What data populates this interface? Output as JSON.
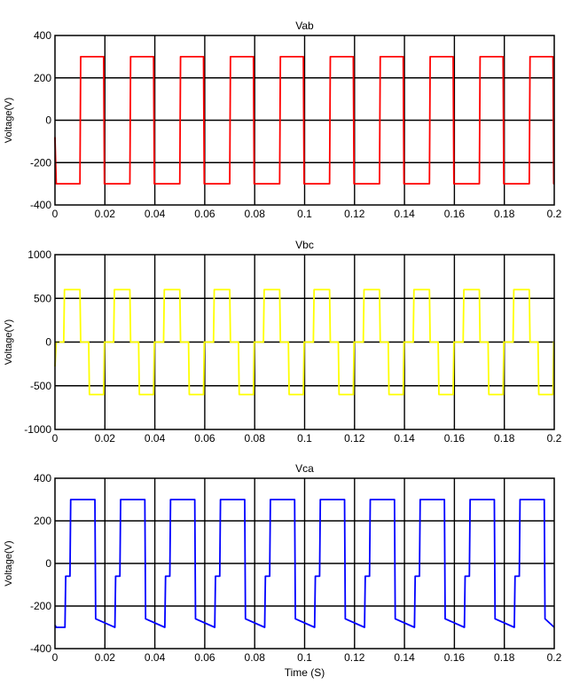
{
  "figure": {
    "chart_data": [
      {
        "type": "line",
        "title": "Vab",
        "ylabel": "Voltage(V)",
        "xlabel": "",
        "xlim": [
          0,
          0.2
        ],
        "ylim": [
          -400,
          400
        ],
        "xticks": [
          0,
          0.02,
          0.04,
          0.06,
          0.08,
          0.1,
          0.12,
          0.14,
          0.16,
          0.18,
          0.2
        ],
        "xtick_labels": [
          "0",
          "0.02",
          "0.04",
          "0.06",
          "0.08",
          "0.1",
          "0.12",
          "0.14",
          "0.16",
          "0.18",
          "0.2"
        ],
        "yticks": [
          -400,
          -200,
          0,
          200,
          400
        ],
        "ytick_labels": [
          "-400",
          "-200",
          "0",
          "200",
          "400"
        ],
        "grid": true,
        "series": [
          {
            "color": "#ff0000",
            "x": [
              0,
              0.0005,
              0.01,
              0.0103,
              0.0195,
              0.0198,
              0.03,
              0.0303,
              0.0395,
              0.0398,
              0.05,
              0.0503,
              0.0595,
              0.0598,
              0.07,
              0.0703,
              0.0795,
              0.0798,
              0.09,
              0.0903,
              0.0995,
              0.0998,
              0.11,
              0.1103,
              0.1195,
              0.1198,
              0.13,
              0.1303,
              0.1395,
              0.1398,
              0.15,
              0.1503,
              0.1595,
              0.1598,
              0.17,
              0.1703,
              0.1795,
              0.1798,
              0.19,
              0.1903,
              0.1995,
              0.1998,
              0.2
            ],
            "values": [
              -80,
              -300,
              -300,
              300,
              300,
              -300,
              -300,
              300,
              300,
              -300,
              -300,
              300,
              300,
              -300,
              -300,
              300,
              300,
              -300,
              -300,
              300,
              300,
              -300,
              -300,
              300,
              300,
              -300,
              -300,
              300,
              300,
              -300,
              -300,
              300,
              300,
              -300,
              -300,
              300,
              300,
              -300,
              -300,
              300,
              300,
              -300,
              -300
            ]
          }
        ]
      },
      {
        "type": "line",
        "title": "Vbc",
        "ylabel": "Voltage(V)",
        "xlabel": "",
        "xlim": [
          0,
          0.2
        ],
        "ylim": [
          -1000,
          1000
        ],
        "xticks": [
          0,
          0.02,
          0.04,
          0.06,
          0.08,
          0.1,
          0.12,
          0.14,
          0.16,
          0.18,
          0.2
        ],
        "xtick_labels": [
          "0",
          "0.02",
          "0.04",
          "0.06",
          "0.08",
          "0.1",
          "0.12",
          "0.14",
          "0.16",
          "0.18",
          "0.2"
        ],
        "yticks": [
          -1000,
          -500,
          0,
          500,
          1000
        ],
        "ytick_labels": [
          "-1000",
          "-500",
          "0",
          "500",
          "1000"
        ],
        "grid": true,
        "series": [
          {
            "color": "#ffff00",
            "x": [
              0,
              0.0005,
              0.0035,
              0.0038,
              0.01,
              0.0103,
              0.0135,
              0.0138,
              0.0195,
              0.0198,
              0.0235,
              0.0238,
              0.03,
              0.0303,
              0.0335,
              0.0338,
              0.0395,
              0.0398,
              0.0435,
              0.0438,
              0.05,
              0.0503,
              0.0535,
              0.0538,
              0.0595,
              0.0598,
              0.0635,
              0.0638,
              0.07,
              0.0703,
              0.0735,
              0.0738,
              0.0795,
              0.0798,
              0.0835,
              0.0838,
              0.09,
              0.0903,
              0.0935,
              0.0938,
              0.0995,
              0.0998,
              0.1035,
              0.1038,
              0.11,
              0.1103,
              0.1135,
              0.1138,
              0.1195,
              0.1198,
              0.1235,
              0.1238,
              0.13,
              0.1303,
              0.1335,
              0.1338,
              0.1395,
              0.1398,
              0.1435,
              0.1438,
              0.15,
              0.1503,
              0.1535,
              0.1538,
              0.1595,
              0.1598,
              0.1635,
              0.1638,
              0.17,
              0.1703,
              0.1735,
              0.1738,
              0.1795,
              0.1798,
              0.1835,
              0.1838,
              0.19,
              0.1903,
              0.1935,
              0.1938,
              0.1995,
              0.1998,
              0.2
            ],
            "values": [
              -280,
              0,
              0,
              600,
              600,
              0,
              0,
              -600,
              -600,
              0,
              0,
              600,
              600,
              0,
              0,
              -600,
              -600,
              0,
              0,
              600,
              600,
              0,
              0,
              -600,
              -600,
              0,
              0,
              600,
              600,
              0,
              0,
              -600,
              -600,
              0,
              0,
              600,
              600,
              0,
              0,
              -600,
              -600,
              0,
              0,
              600,
              600,
              0,
              0,
              -600,
              -600,
              0,
              0,
              600,
              600,
              0,
              0,
              -600,
              -600,
              0,
              0,
              600,
              600,
              0,
              0,
              -600,
              -600,
              0,
              0,
              600,
              600,
              0,
              0,
              -600,
              -600,
              0,
              0,
              600,
              600,
              0,
              0,
              -600,
              -600,
              0,
              0
            ]
          }
        ]
      },
      {
        "type": "line",
        "title": "Vca",
        "ylabel": "Voltage(V)",
        "xlabel": "Time (S)",
        "xlim": [
          0,
          0.2
        ],
        "ylim": [
          -400,
          400
        ],
        "xticks": [
          0,
          0.02,
          0.04,
          0.06,
          0.08,
          0.1,
          0.12,
          0.14,
          0.16,
          0.18,
          0.2
        ],
        "xtick_labels": [
          "0",
          "0.02",
          "0.04",
          "0.06",
          "0.08",
          "0.1",
          "0.12",
          "0.14",
          "0.16",
          "0.18",
          "0.2"
        ],
        "yticks": [
          -400,
          -200,
          0,
          200,
          400
        ],
        "ytick_labels": [
          "-400",
          "-200",
          "0",
          "200",
          "400"
        ],
        "grid": true,
        "series": [
          {
            "color": "#0000ff",
            "x": [
              0,
              0.0005,
              0.004,
              0.0043,
              0.006,
              0.0063,
              0.016,
              0.0163,
              0.024,
              0.0243,
              0.026,
              0.0263,
              0.036,
              0.0363,
              0.044,
              0.0443,
              0.046,
              0.0463,
              0.056,
              0.0563,
              0.064,
              0.0643,
              0.066,
              0.0663,
              0.076,
              0.0763,
              0.084,
              0.0843,
              0.086,
              0.0863,
              0.096,
              0.0963,
              0.104,
              0.1043,
              0.106,
              0.1063,
              0.116,
              0.1163,
              0.124,
              0.1243,
              0.126,
              0.1263,
              0.136,
              0.1363,
              0.144,
              0.1443,
              0.146,
              0.1463,
              0.156,
              0.1563,
              0.164,
              0.1643,
              0.166,
              0.1663,
              0.176,
              0.1763,
              0.184,
              0.1843,
              0.186,
              0.1863,
              0.196,
              0.1963,
              0.2
            ],
            "values": [
              -290,
              -300,
              -300,
              -60,
              -60,
              300,
              300,
              -260,
              -300,
              -60,
              -60,
              300,
              300,
              -260,
              -300,
              -60,
              -60,
              300,
              300,
              -260,
              -300,
              -60,
              -60,
              300,
              300,
              -260,
              -300,
              -60,
              -60,
              300,
              300,
              -260,
              -300,
              -60,
              -60,
              300,
              300,
              -260,
              -300,
              -60,
              -60,
              300,
              300,
              -260,
              -300,
              -60,
              -60,
              300,
              300,
              -260,
              -300,
              -60,
              -60,
              300,
              300,
              -260,
              -300,
              -60,
              -60,
              300,
              300,
              -260,
              -300
            ]
          }
        ]
      }
    ]
  }
}
